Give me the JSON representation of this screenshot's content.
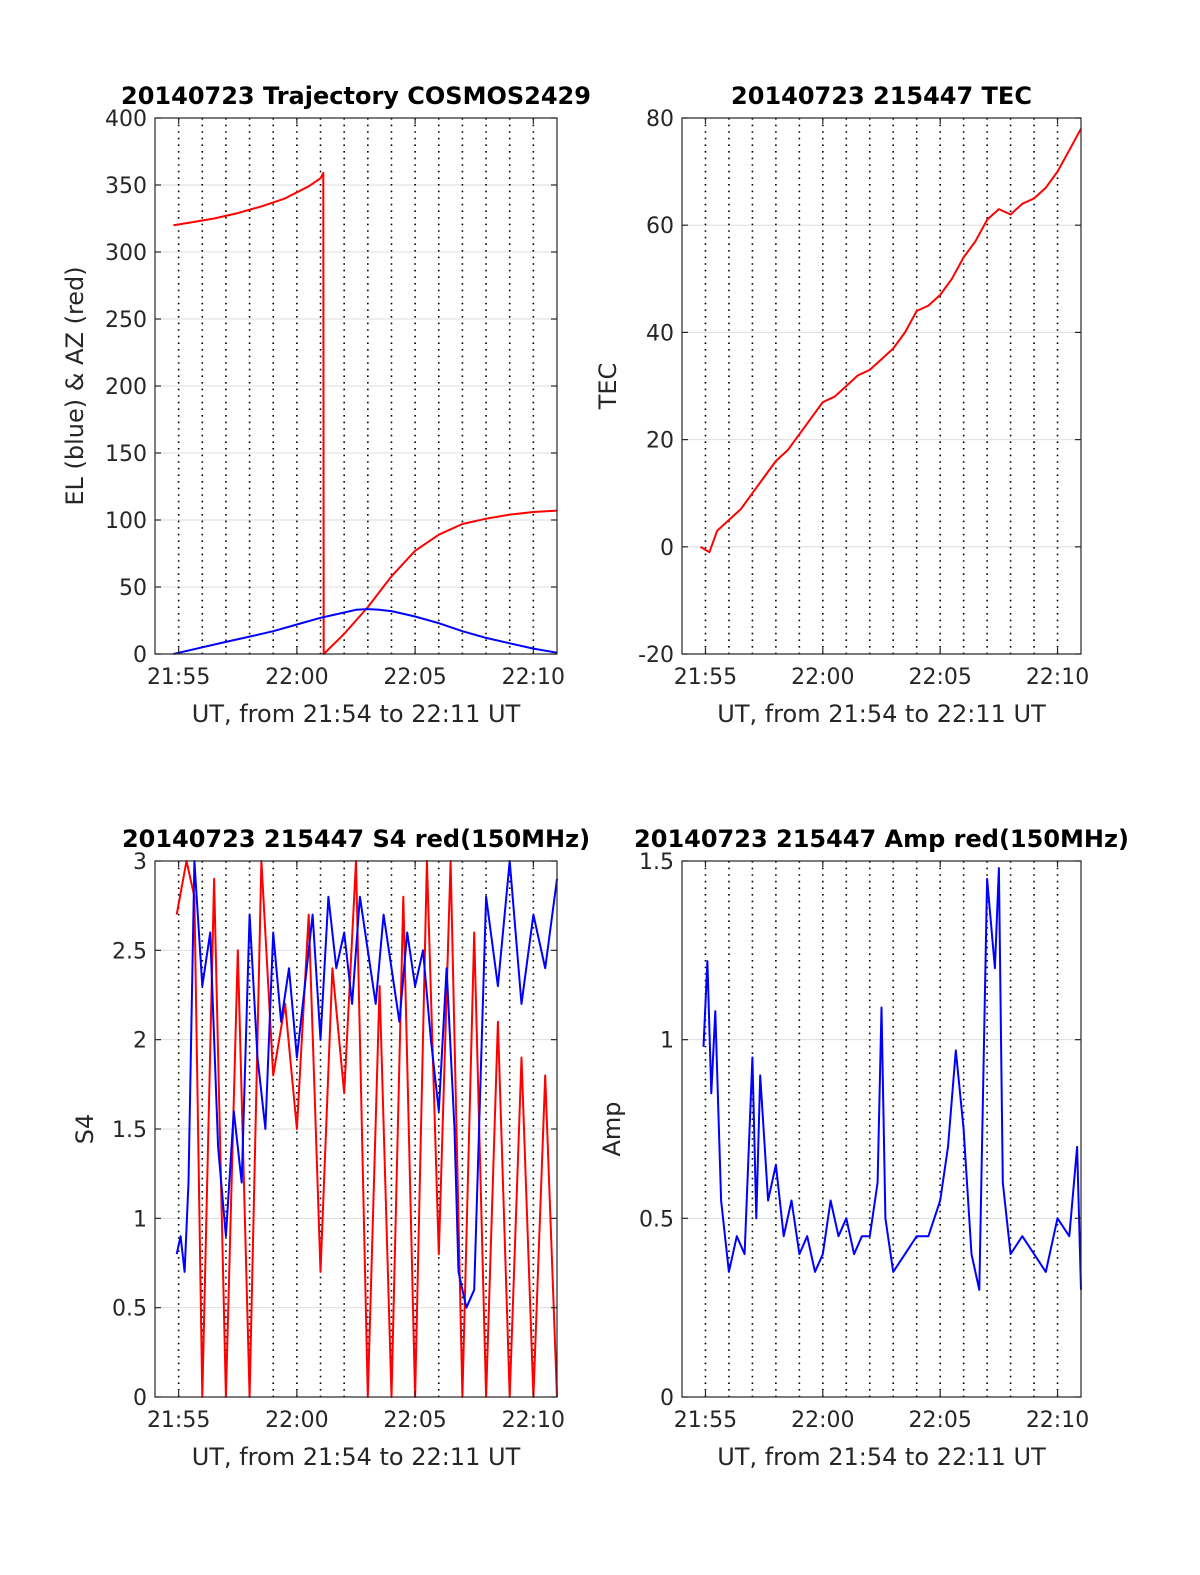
{
  "colors": {
    "red": "#ff0000",
    "blue": "#0000ff",
    "axis": "#262626",
    "grid": "#dedede",
    "vgrid": "#000000"
  },
  "chart_data": [
    {
      "id": "trajectory",
      "type": "line",
      "title": "20140723 Trajectory COSMOS2429",
      "xlabel": "UT, from 21:54 to 22:11 UT",
      "ylabel": "EL (blue) & AZ (red)",
      "xlim": [
        "21:54",
        "22:11"
      ],
      "ylim": [
        0,
        400
      ],
      "yticks": [
        0,
        50,
        100,
        150,
        200,
        250,
        300,
        350,
        400
      ],
      "xticks": [
        "21:55",
        "22:00",
        "22:05",
        "22:10"
      ],
      "grid": true,
      "series": [
        {
          "color": "red",
          "x": [
            "21:54:47",
            "21:55:30",
            "21:56:30",
            "21:57:30",
            "21:58:30",
            "21:59:30",
            "22:00:30",
            "22:01:00",
            "22:01:07",
            "22:01:08",
            "22:02:00",
            "22:03:00",
            "22:04:00",
            "22:05:00",
            "22:06:00",
            "22:07:00",
            "22:08:00",
            "22:09:00",
            "22:10:00",
            "22:11:00"
          ],
          "y": [
            320,
            322,
            325,
            329,
            334,
            340,
            349,
            355,
            359,
            0,
            15,
            35,
            58,
            77,
            89,
            97,
            101,
            104,
            106,
            107
          ]
        },
        {
          "color": "blue",
          "x": [
            "21:54:47",
            "21:56:00",
            "21:57:00",
            "21:58:00",
            "21:59:00",
            "22:00:00",
            "22:01:00",
            "22:02:00",
            "22:02:30",
            "22:03:00",
            "22:03:30",
            "22:04:00",
            "22:05:00",
            "22:06:00",
            "22:07:00",
            "22:08:00",
            "22:09:00",
            "22:10:00",
            "22:11:00"
          ],
          "y": [
            0,
            5,
            9,
            13,
            17,
            22,
            27,
            31,
            33,
            33.5,
            33,
            32,
            28,
            23,
            17,
            12,
            8,
            4,
            1
          ]
        }
      ]
    },
    {
      "id": "tec",
      "type": "line",
      "title": "20140723 215447 TEC",
      "xlabel": "UT, from 21:54 to 22:11 UT",
      "ylabel": "TEC",
      "xlim": [
        "21:54",
        "22:11"
      ],
      "ylim": [
        -20,
        80
      ],
      "yticks": [
        -20,
        0,
        20,
        40,
        60,
        80
      ],
      "xticks": [
        "21:55",
        "22:00",
        "22:05",
        "22:10"
      ],
      "grid": true,
      "series": [
        {
          "color": "red",
          "x": [
            "21:54:47",
            "21:55:10",
            "21:55:30",
            "21:56:00",
            "21:56:30",
            "21:57:00",
            "21:57:30",
            "21:58:00",
            "21:58:30",
            "21:59:00",
            "21:59:30",
            "22:00:00",
            "22:00:30",
            "22:01:00",
            "22:01:30",
            "22:02:00",
            "22:02:30",
            "22:03:00",
            "22:03:30",
            "22:04:00",
            "22:04:30",
            "22:05:00",
            "22:05:30",
            "22:06:00",
            "22:06:30",
            "22:07:00",
            "22:07:30",
            "22:08:00",
            "22:08:30",
            "22:09:00",
            "22:09:30",
            "22:10:00",
            "22:10:30",
            "22:11:00"
          ],
          "y": [
            0,
            -1,
            3,
            5,
            7,
            10,
            13,
            16,
            18,
            21,
            24,
            27,
            28,
            30,
            32,
            33,
            35,
            37,
            40,
            44,
            45,
            47,
            50,
            54,
            57,
            61,
            63,
            62,
            64,
            65,
            67,
            70,
            74,
            78
          ]
        }
      ]
    },
    {
      "id": "s4",
      "type": "line",
      "title": "20140723 215447 S4 red(150MHz)",
      "xlabel": "UT, from 21:54 to 22:11 UT",
      "ylabel": "S4",
      "xlim": [
        "21:54",
        "22:11"
      ],
      "ylim": [
        0,
        3
      ],
      "yticks": [
        0,
        0.5,
        1,
        1.5,
        2,
        2.5,
        3
      ],
      "xticks": [
        "21:55",
        "22:00",
        "22:05",
        "22:10"
      ],
      "grid": true,
      "series": [
        {
          "color": "red",
          "x": [
            "21:54:55",
            "21:55:20",
            "21:55:40",
            "21:56:00",
            "21:56:30",
            "21:57:00",
            "21:57:30",
            "21:58:00",
            "21:58:30",
            "21:59:00",
            "21:59:30",
            "22:00:00",
            "22:00:30",
            "22:01:00",
            "22:01:30",
            "22:02:00",
            "22:02:30",
            "22:03:00",
            "22:03:30",
            "22:04:00",
            "22:04:30",
            "22:05:00",
            "22:05:30",
            "22:06:00",
            "22:06:30",
            "22:07:00",
            "22:07:30",
            "22:08:00",
            "22:08:30",
            "22:09:00",
            "22:09:30",
            "22:10:00",
            "22:10:30",
            "22:11:00"
          ],
          "y": [
            2.7,
            3,
            2.8,
            0,
            2.9,
            0,
            2.5,
            0,
            3,
            1.8,
            2.2,
            1.5,
            2.7,
            0.7,
            2.4,
            1.7,
            3,
            0,
            2.3,
            0,
            2.8,
            0,
            3,
            0.8,
            3,
            0,
            2.6,
            0,
            2.1,
            0,
            1.9,
            0,
            1.8,
            0
          ]
        },
        {
          "color": "blue",
          "x": [
            "21:54:55",
            "21:55:05",
            "21:55:15",
            "21:55:25",
            "21:55:40",
            "21:56:00",
            "21:56:20",
            "21:56:40",
            "21:57:00",
            "21:57:20",
            "21:57:40",
            "21:58:00",
            "21:58:20",
            "21:58:40",
            "21:59:00",
            "21:59:20",
            "21:59:40",
            "22:00:00",
            "22:00:20",
            "22:00:40",
            "22:01:00",
            "22:01:20",
            "22:01:40",
            "22:02:00",
            "22:02:20",
            "22:02:40",
            "22:03:00",
            "22:03:20",
            "22:03:40",
            "22:04:00",
            "22:04:20",
            "22:04:40",
            "22:05:00",
            "22:05:20",
            "22:05:40",
            "22:06:00",
            "22:06:20",
            "22:06:40",
            "22:06:50",
            "22:07:10",
            "22:07:30",
            "22:08:00",
            "22:08:30",
            "22:09:00",
            "22:09:30",
            "22:10:00",
            "22:10:30",
            "22:11:00"
          ],
          "y": [
            0.8,
            0.9,
            0.7,
            1.2,
            3,
            2.3,
            2.6,
            1.4,
            0.9,
            1.6,
            1.2,
            2.7,
            1.9,
            1.5,
            2.6,
            2.1,
            2.4,
            1.9,
            2.3,
            2.7,
            2.0,
            2.8,
            2.4,
            2.6,
            2.2,
            2.8,
            2.5,
            2.2,
            2.7,
            2.4,
            2.1,
            2.6,
            2.3,
            2.5,
            2.0,
            1.6,
            2.4,
            1.5,
            0.7,
            0.5,
            0.6,
            2.8,
            2.3,
            3,
            2.2,
            2.7,
            2.4,
            2.9
          ]
        }
      ]
    },
    {
      "id": "amp",
      "type": "line",
      "title": "20140723 215447 Amp red(150MHz)",
      "xlabel": "UT, from 21:54 to 22:11 UT",
      "ylabel": "Amp",
      "xlim": [
        "21:54",
        "22:11"
      ],
      "ylim": [
        0,
        1.5
      ],
      "yticks": [
        0,
        0.5,
        1,
        1.5
      ],
      "xticks": [
        "21:55",
        "22:00",
        "22:05",
        "22:10"
      ],
      "grid": true,
      "series": [
        {
          "color": "blue",
          "x": [
            "21:54:55",
            "21:55:05",
            "21:55:15",
            "21:55:25",
            "21:55:40",
            "21:56:00",
            "21:56:20",
            "21:56:40",
            "21:57:00",
            "21:57:10",
            "21:57:20",
            "21:57:40",
            "21:58:00",
            "21:58:20",
            "21:58:40",
            "21:59:00",
            "21:59:20",
            "21:59:40",
            "22:00:00",
            "22:00:20",
            "22:00:40",
            "22:01:00",
            "22:01:20",
            "22:01:40",
            "22:02:00",
            "22:02:20",
            "22:02:30",
            "22:02:40",
            "22:03:00",
            "22:03:30",
            "22:04:00",
            "22:04:30",
            "22:05:00",
            "22:05:20",
            "22:05:40",
            "22:06:00",
            "22:06:20",
            "22:06:40",
            "22:07:00",
            "22:07:20",
            "22:07:30",
            "22:07:40",
            "22:08:00",
            "22:08:30",
            "22:09:00",
            "22:09:30",
            "22:10:00",
            "22:10:30",
            "22:10:50",
            "22:11:00"
          ],
          "y": [
            0.98,
            1.22,
            0.85,
            1.08,
            0.55,
            0.35,
            0.45,
            0.4,
            0.95,
            0.5,
            0.9,
            0.55,
            0.65,
            0.45,
            0.55,
            0.4,
            0.45,
            0.35,
            0.4,
            0.55,
            0.45,
            0.5,
            0.4,
            0.45,
            0.45,
            0.6,
            1.09,
            0.5,
            0.35,
            0.4,
            0.45,
            0.45,
            0.55,
            0.7,
            0.97,
            0.75,
            0.4,
            0.3,
            1.45,
            1.2,
            1.48,
            0.6,
            0.4,
            0.45,
            0.4,
            0.35,
            0.5,
            0.45,
            0.7,
            0.3
          ]
        }
      ]
    }
  ]
}
